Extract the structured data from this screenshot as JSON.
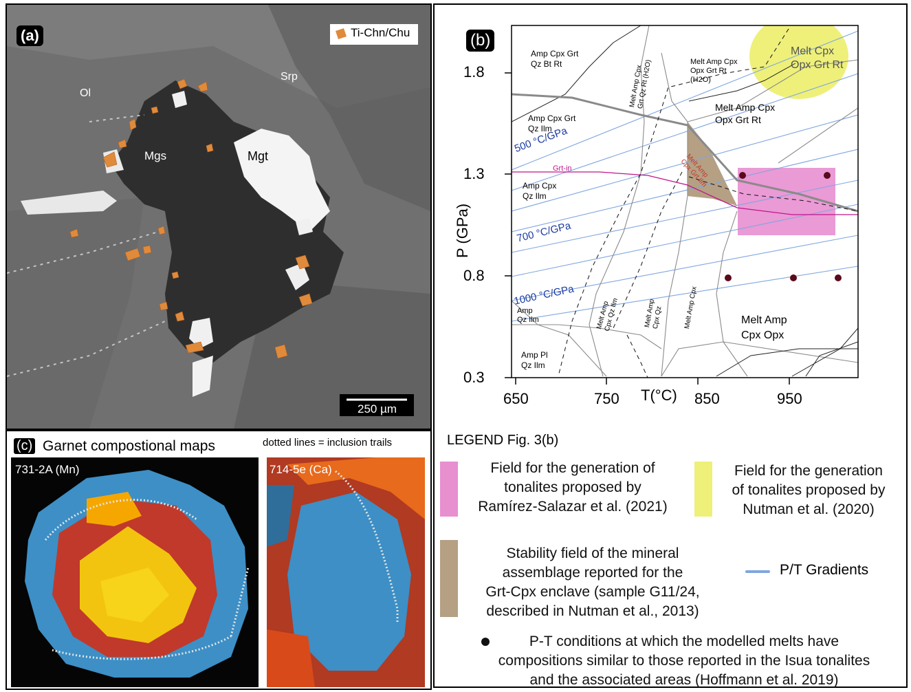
{
  "panel_a": {
    "tag": "(a)",
    "legend_label": "Ti-Chn/Chu",
    "labels": {
      "ol": "Ol",
      "srp": "Srp",
      "mgs": "Mgs",
      "mgt": "Mgt"
    },
    "scale_bar": "250 µm",
    "colors": {
      "ti_chn": "#e08a3c"
    }
  },
  "panel_b": {
    "tag": "(b)",
    "y_axis_label": "P (GPa)",
    "x_axis_label": "T(°C)",
    "y_ticks": [
      "1.8",
      "1.3",
      "0.8",
      "0.3"
    ],
    "x_ticks": [
      "650",
      "750",
      "850",
      "950"
    ],
    "fields": {
      "f1": "Amp Cpx Grt",
      "f1b": "Qz Bt Rt",
      "f2": "Amp Cpx Grt",
      "f2b": "Qz Ilm",
      "f3": "Amp Cpx",
      "f3b": "Qz Ilm",
      "f4": "Amp",
      "f4b": "Qz Ilm",
      "f5": "Amp Pl",
      "f5b": "Qz Ilm",
      "f6": "Melt Amp Cpx",
      "f6b": "Opx Grt Rt",
      "f7": "Melt Cpx",
      "f7b": "Opx Grt Rt",
      "f8": "Melt Amp",
      "f8b": "Cpx Opx",
      "f9": "Melt Amp Cpx",
      "f9b": "Opx Grt Rt",
      "f9c": "(H2O)",
      "v1": "Melt Amp Cpx",
      "v1b": "Grt Qz Rt (H2O)",
      "v2": "Melt Amp",
      "v2b": "Cpx Qz Ilm",
      "v3": "Melt Amp",
      "v3b": "Cpx Qz",
      "v4": "Melt Amp Cpx",
      "brown": "Melt Amp",
      "brownb": "Cpx Grt Ilm",
      "grt_in": "Grt-in"
    },
    "gradients": [
      "500 °C/GPa",
      "700 °C/GPa",
      "1000 °C/GPa"
    ],
    "colors": {
      "pink": "#e88fd0",
      "yellow": "#eef07a",
      "brown": "#b5a084",
      "gradient": "#7fa6e0",
      "grt_in": "#c0158a",
      "dot": "#5a0a1a"
    },
    "pt_points": [
      {
        "T": 895,
        "P": 1.3
      },
      {
        "T": 970,
        "P": 1.3
      },
      {
        "T": 877,
        "P": 0.8
      },
      {
        "T": 935,
        "P": 0.8
      },
      {
        "T": 985,
        "P": 0.8
      }
    ]
  },
  "legend": {
    "title": "LEGEND Fig. 3(b)",
    "pink_text": [
      "Field for the generation of",
      "tonalites proposed by",
      "Ramírez-Salazar et al. (2021)"
    ],
    "yellow_text": [
      "Field for the generation",
      "of tonalites proposed by",
      "Nutman et al. (2020)"
    ],
    "brown_text": [
      "Stability field of the mineral",
      "assemblage reported for the",
      "Grt-Cpx enclave (sample G11/24,",
      "described in Nutman et al., 2013)"
    ],
    "gradient_text": "P/T Gradients",
    "dot_text": [
      "P-T conditions at which the modelled melts have",
      "compositions similar to  those reported in the Isua tonalites",
      "and  the associated areas (Hoffmann et al. 2019)"
    ]
  },
  "panel_c": {
    "tag": "(c)",
    "title": "Garnet compostional maps",
    "note": "dotted lines = inclusion trails",
    "map1_label": "731-2A (Mn)",
    "map2_label": "714-5e (Ca)"
  }
}
